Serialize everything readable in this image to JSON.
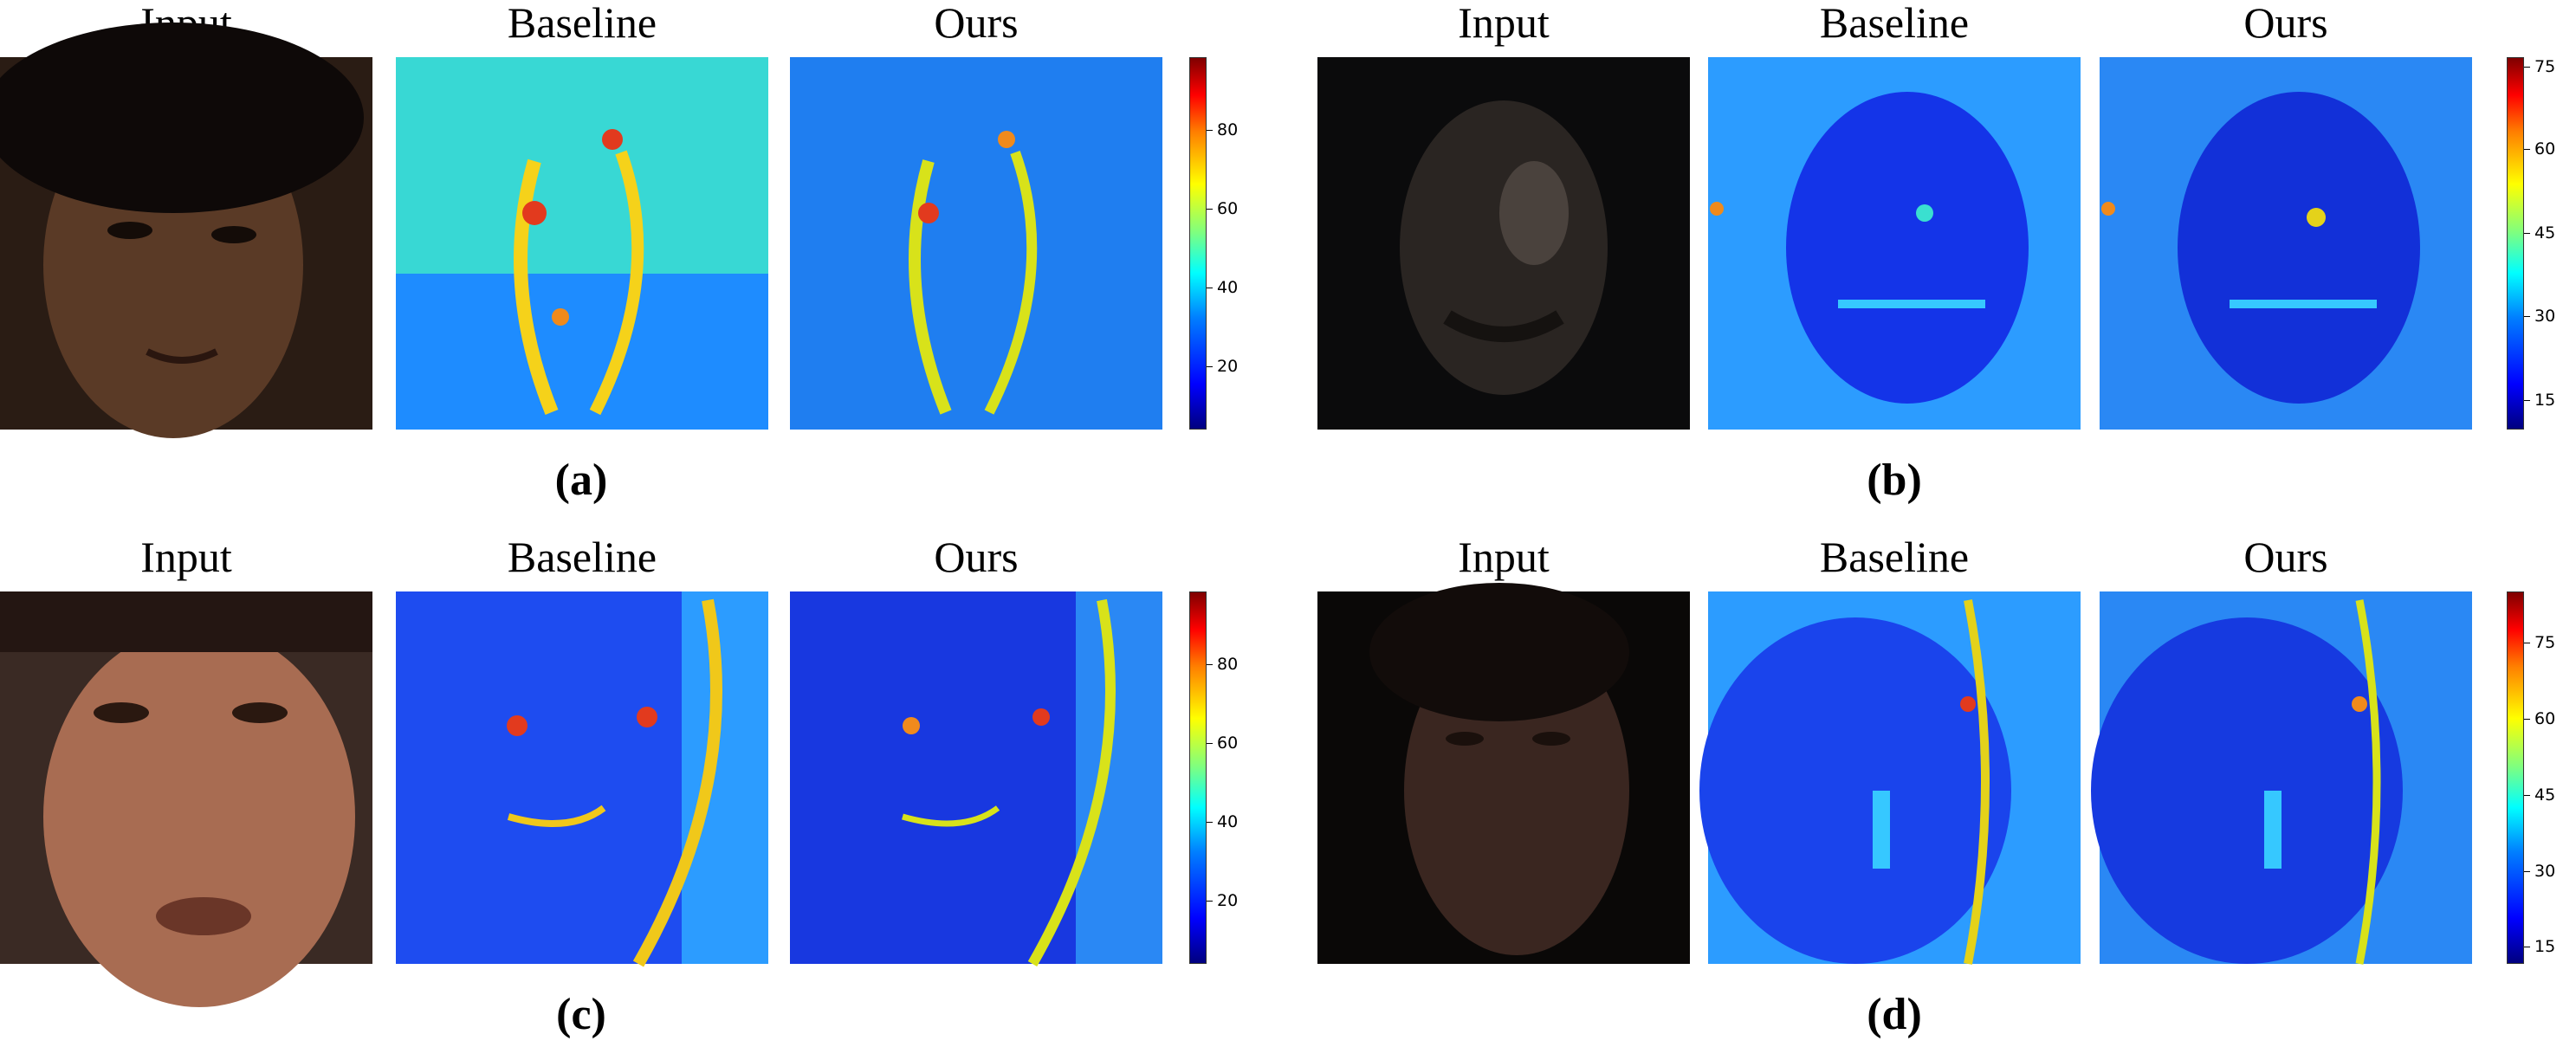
{
  "column_titles": [
    "Input",
    "Baseline",
    "Ours"
  ],
  "panels": [
    {
      "caption": "(a)",
      "ticks": [
        "80",
        "60",
        "40",
        "20"
      ]
    },
    {
      "caption": "(b)",
      "ticks": [
        "75",
        "60",
        "45",
        "30",
        "15"
      ]
    },
    {
      "caption": "(c)",
      "ticks": [
        "80",
        "60",
        "40",
        "20"
      ]
    },
    {
      "caption": "(d)",
      "ticks": [
        "75",
        "60",
        "45",
        "30",
        "15"
      ]
    }
  ],
  "colors": {
    "colormap": "jet"
  }
}
